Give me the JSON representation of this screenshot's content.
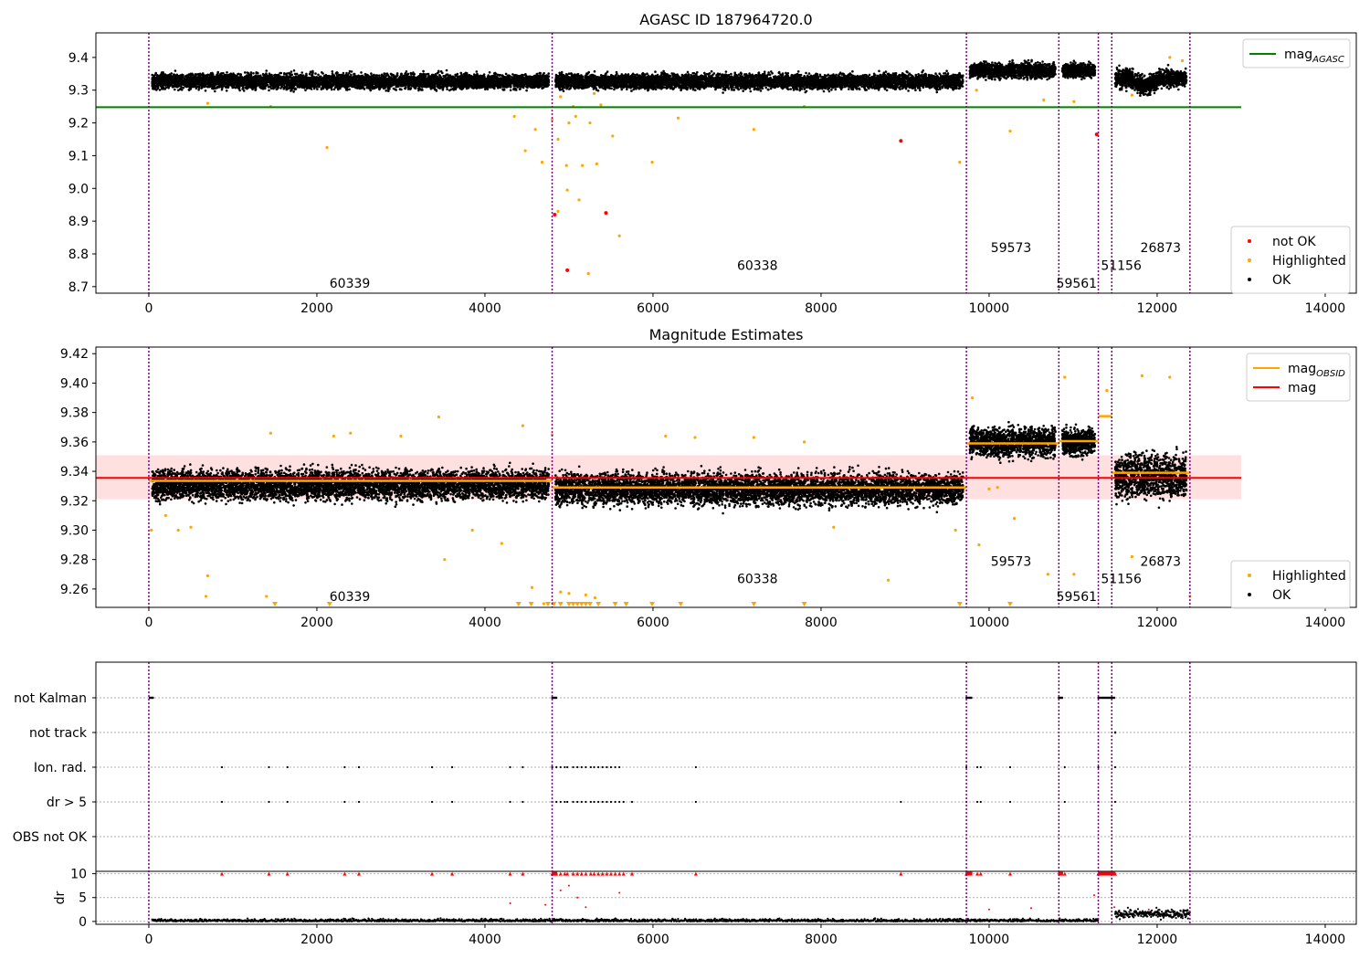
{
  "chart_data": [
    {
      "type": "scatter",
      "title": "AGASC ID 187964720.0",
      "xlim": [
        -630,
        14370
      ],
      "ylim": [
        8.68,
        9.475
      ],
      "xticks": [
        0,
        2000,
        4000,
        6000,
        8000,
        10000,
        12000,
        14000
      ],
      "xtick_labels": [
        "0",
        "2000",
        "4000",
        "6000",
        "8000",
        "10000",
        "12000",
        "14000"
      ],
      "yticks": [
        8.7,
        8.8,
        8.9,
        9.0,
        9.1,
        9.2,
        9.3,
        9.4
      ],
      "ytick_labels": [
        "8.7",
        "8.8",
        "8.9",
        "9.0",
        "9.1",
        "9.2",
        "9.3",
        "9.4"
      ],
      "obs_boundaries": [
        0,
        4800,
        9730,
        10830,
        11300,
        11460,
        12390
      ],
      "obs_labels": [
        {
          "text": "60339",
          "x": 2150,
          "y": 8.71
        },
        {
          "text": "60338",
          "x": 7000,
          "y": 8.765
        },
        {
          "text": "59573",
          "x": 10020,
          "y": 8.82
        },
        {
          "text": "59561",
          "x": 10800,
          "y": 8.71
        },
        {
          "text": "51156",
          "x": 11330,
          "y": 8.765
        },
        {
          "text": "26873",
          "x": 11800,
          "y": 8.82
        }
      ],
      "reference_line": {
        "label": "mag",
        "subscript": "AGASC",
        "y": 9.248,
        "x_range": [
          -630,
          13000
        ],
        "color": "#008000"
      },
      "ok_bands": [
        {
          "x": [
            0,
            4800
          ],
          "center": 9.327,
          "spread": 0.02
        },
        {
          "x": [
            4800,
            9730
          ],
          "center": 9.327,
          "spread": 0.02
        },
        {
          "x": [
            9730,
            10830
          ],
          "center": 9.36,
          "spread": 0.02
        },
        {
          "x": [
            10830,
            11300
          ],
          "center": 9.36,
          "spread": 0.018
        },
        {
          "x": [
            11460,
            12390
          ],
          "center": 9.335,
          "spread": 0.025
        }
      ],
      "highlighted": [
        [
          700,
          9.26
        ],
        [
          1450,
          9.25
        ],
        [
          2120,
          9.125
        ],
        [
          4350,
          9.22
        ],
        [
          4480,
          9.115
        ],
        [
          4600,
          9.18
        ],
        [
          4680,
          9.08
        ],
        [
          4800,
          9.21
        ],
        [
          4870,
          9.15
        ],
        [
          4900,
          9.28
        ],
        [
          4970,
          9.07
        ],
        [
          5000,
          9.2
        ],
        [
          5050,
          9.25
        ],
        [
          5080,
          9.22
        ],
        [
          5120,
          8.965
        ],
        [
          5160,
          9.07
        ],
        [
          5250,
          9.2
        ],
        [
          5300,
          9.29
        ],
        [
          5330,
          9.075
        ],
        [
          5380,
          9.255
        ],
        [
          5520,
          9.16
        ],
        [
          5600,
          8.855
        ],
        [
          5990,
          9.08
        ],
        [
          6300,
          9.215
        ],
        [
          7200,
          9.18
        ],
        [
          7800,
          9.25
        ],
        [
          9650,
          9.08
        ],
        [
          9850,
          9.3
        ],
        [
          10250,
          9.175
        ],
        [
          10650,
          9.27
        ],
        [
          11010,
          9.265
        ],
        [
          11700,
          9.285
        ],
        [
          12150,
          9.4
        ],
        [
          12300,
          9.39
        ],
        [
          4980,
          8.995
        ],
        [
          4870,
          8.93
        ],
        [
          5230,
          8.74
        ]
      ],
      "not_ok": [
        [
          4830,
          8.92
        ],
        [
          4980,
          8.75
        ],
        [
          5440,
          8.925
        ],
        [
          8950,
          9.145
        ],
        [
          11280,
          9.165
        ]
      ],
      "legend": [
        {
          "label": "mag",
          "subscript": "AGASC",
          "color": "#008000",
          "kind": "line"
        }
      ],
      "legend2": [
        {
          "label": "not OK",
          "color": "#ff0000",
          "kind": "dot"
        },
        {
          "label": "Highlighted",
          "color": "#ffa500",
          "kind": "dot"
        },
        {
          "label": "OK",
          "color": "#000000",
          "kind": "dot"
        }
      ]
    },
    {
      "type": "scatter",
      "title": "Magnitude Estimates",
      "xlim": [
        -630,
        14370
      ],
      "ylim": [
        9.2475,
        9.4245
      ],
      "xticks": [
        0,
        2000,
        4000,
        6000,
        8000,
        10000,
        12000,
        14000
      ],
      "xtick_labels": [
        "0",
        "2000",
        "4000",
        "6000",
        "8000",
        "10000",
        "12000",
        "14000"
      ],
      "yticks": [
        9.26,
        9.28,
        9.3,
        9.32,
        9.34,
        9.36,
        9.38,
        9.4,
        9.42
      ],
      "ytick_labels": [
        "9.26",
        "9.28",
        "9.30",
        "9.32",
        "9.34",
        "9.36",
        "9.38",
        "9.40",
        "9.42"
      ],
      "obs_boundaries": [
        0,
        4800,
        9730,
        10830,
        11300,
        11460,
        12390
      ],
      "obs_labels": [
        {
          "text": "60339",
          "x": 2150,
          "y": 9.255
        },
        {
          "text": "60338",
          "x": 7000,
          "y": 9.267
        },
        {
          "text": "59573",
          "x": 10020,
          "y": 9.279
        },
        {
          "text": "59561",
          "x": 10800,
          "y": 9.255
        },
        {
          "text": "51156",
          "x": 11330,
          "y": 9.267
        },
        {
          "text": "26873",
          "x": 11800,
          "y": 9.279
        }
      ],
      "mag_line": {
        "label": "mag",
        "y": 9.3355,
        "band": [
          9.321,
          9.351
        ],
        "x_range": [
          -630,
          13000
        ],
        "color": "#ff0000"
      },
      "obsid_mags": [
        {
          "x": [
            0,
            4800
          ],
          "y": 9.3335
        },
        {
          "x": [
            4800,
            9730
          ],
          "y": 9.329
        },
        {
          "x": [
            9730,
            10830
          ],
          "y": 9.359
        },
        {
          "x": [
            10830,
            11300
          ],
          "y": 9.3605
        },
        {
          "x": [
            11300,
            11460
          ],
          "y": 9.3775
        },
        {
          "x": [
            11460,
            12390
          ],
          "y": 9.339
        }
      ],
      "ok_bands": [
        {
          "x": [
            0,
            4800
          ],
          "center": 9.331,
          "spread": 0.009
        },
        {
          "x": [
            4800,
            9730
          ],
          "center": 9.328,
          "spread": 0.0095
        },
        {
          "x": [
            9730,
            10830
          ],
          "center": 9.36,
          "spread": 0.009
        },
        {
          "x": [
            10830,
            11300
          ],
          "center": 9.36,
          "spread": 0.008
        },
        {
          "x": [
            11460,
            12390
          ],
          "center": 9.337,
          "spread": 0.013
        }
      ],
      "highlighted": [
        [
          30,
          9.3
        ],
        [
          200,
          9.31
        ],
        [
          350,
          9.3
        ],
        [
          500,
          9.302
        ],
        [
          700,
          9.269
        ],
        [
          680,
          9.255
        ],
        [
          1400,
          9.255
        ],
        [
          1450,
          9.366
        ],
        [
          2200,
          9.364
        ],
        [
          2400,
          9.366
        ],
        [
          3000,
          9.364
        ],
        [
          3450,
          9.377
        ],
        [
          3520,
          9.28
        ],
        [
          3850,
          9.3
        ],
        [
          4200,
          9.291
        ],
        [
          4450,
          9.371
        ],
        [
          4560,
          9.261
        ],
        [
          4700,
          9.25
        ],
        [
          4800,
          9.365
        ],
        [
          4900,
          9.258
        ],
        [
          5000,
          9.257
        ],
        [
          5200,
          9.256
        ],
        [
          5310,
          9.254
        ],
        [
          6150,
          9.364
        ],
        [
          6500,
          9.363
        ],
        [
          7200,
          9.363
        ],
        [
          7800,
          9.36
        ],
        [
          8150,
          9.302
        ],
        [
          8800,
          9.266
        ],
        [
          9600,
          9.3
        ],
        [
          9800,
          9.39
        ],
        [
          9880,
          9.29
        ],
        [
          10000,
          9.328
        ],
        [
          10100,
          9.329
        ],
        [
          10300,
          9.308
        ],
        [
          10700,
          9.27
        ],
        [
          10900,
          9.404
        ],
        [
          11010,
          9.27
        ],
        [
          11400,
          9.395
        ],
        [
          11700,
          9.282
        ],
        [
          11820,
          9.405
        ],
        [
          12150,
          9.404
        ],
        [
          12390,
          9.255
        ]
      ],
      "below_range": [
        1500,
        2150,
        4400,
        4550,
        4750,
        4820,
        4900,
        5000,
        5050,
        5100,
        5150,
        5200,
        5250,
        5350,
        5550,
        5680,
        5990,
        6330,
        7200,
        7800,
        9650,
        10250
      ],
      "legend": [
        {
          "label": "mag",
          "subscript": "OBSID",
          "color": "#ffa500",
          "kind": "line"
        },
        {
          "label": "mag",
          "color": "#ff0000",
          "kind": "line"
        }
      ],
      "legend2": [
        {
          "label": "Highlighted",
          "color": "#ffa500",
          "kind": "dot"
        },
        {
          "label": "OK",
          "color": "#000000",
          "kind": "dot"
        }
      ]
    },
    {
      "type": "scatter",
      "title": "",
      "xlim": [
        -630,
        14370
      ],
      "flag_labels": [
        "not Kalman",
        "not track",
        "Ion. rad.",
        "dr > 5",
        "OBS not OK"
      ],
      "flags": {
        "not Kalman": [
          [
            0,
            60
          ],
          [
            4790,
            4860
          ],
          [
            9720,
            9800
          ],
          [
            10820,
            10880
          ],
          [
            11290,
            11500
          ]
        ],
        "not track": [
          [
            11490,
            11500
          ]
        ],
        "Ion. rad.": [
          870,
          1430,
          1650,
          2330,
          2500,
          3370,
          3610,
          4300,
          4450,
          4800,
          4850,
          4900,
          4950,
          4980,
          5050,
          5100,
          5150,
          5200,
          5260,
          5300,
          5350,
          5400,
          5450,
          5500,
          5550,
          5600,
          6510,
          9730,
          9860,
          9900,
          10250,
          10900,
          11300,
          11500
        ],
        "dr > 5": [
          870,
          1430,
          1650,
          2330,
          2500,
          3370,
          3610,
          4300,
          4450,
          4800,
          4850,
          4900,
          4950,
          4980,
          5050,
          5100,
          5150,
          5200,
          5260,
          5300,
          5350,
          5400,
          5450,
          5500,
          5550,
          5600,
          5650,
          5750,
          6510,
          8950,
          9730,
          9860,
          9900,
          10250,
          10900,
          11300,
          11500
        ],
        "OBS not OK": []
      },
      "dr_xticks": [
        0,
        2000,
        4000,
        6000,
        8000,
        10000,
        12000,
        14000
      ],
      "dr_xtick_labels": [
        "0",
        "2000",
        "4000",
        "6000",
        "8000",
        "10000",
        "12000",
        "14000"
      ],
      "dr_yticks": [
        0,
        5,
        10
      ],
      "dr_ytick_labels": [
        "0",
        "5",
        "10"
      ],
      "dr_ylabel": "dr",
      "dr_ylim": [
        -0.6,
        10.5
      ],
      "obs_boundaries": [
        0,
        4800,
        9730,
        10830,
        11300,
        11460,
        12390
      ]
    }
  ]
}
